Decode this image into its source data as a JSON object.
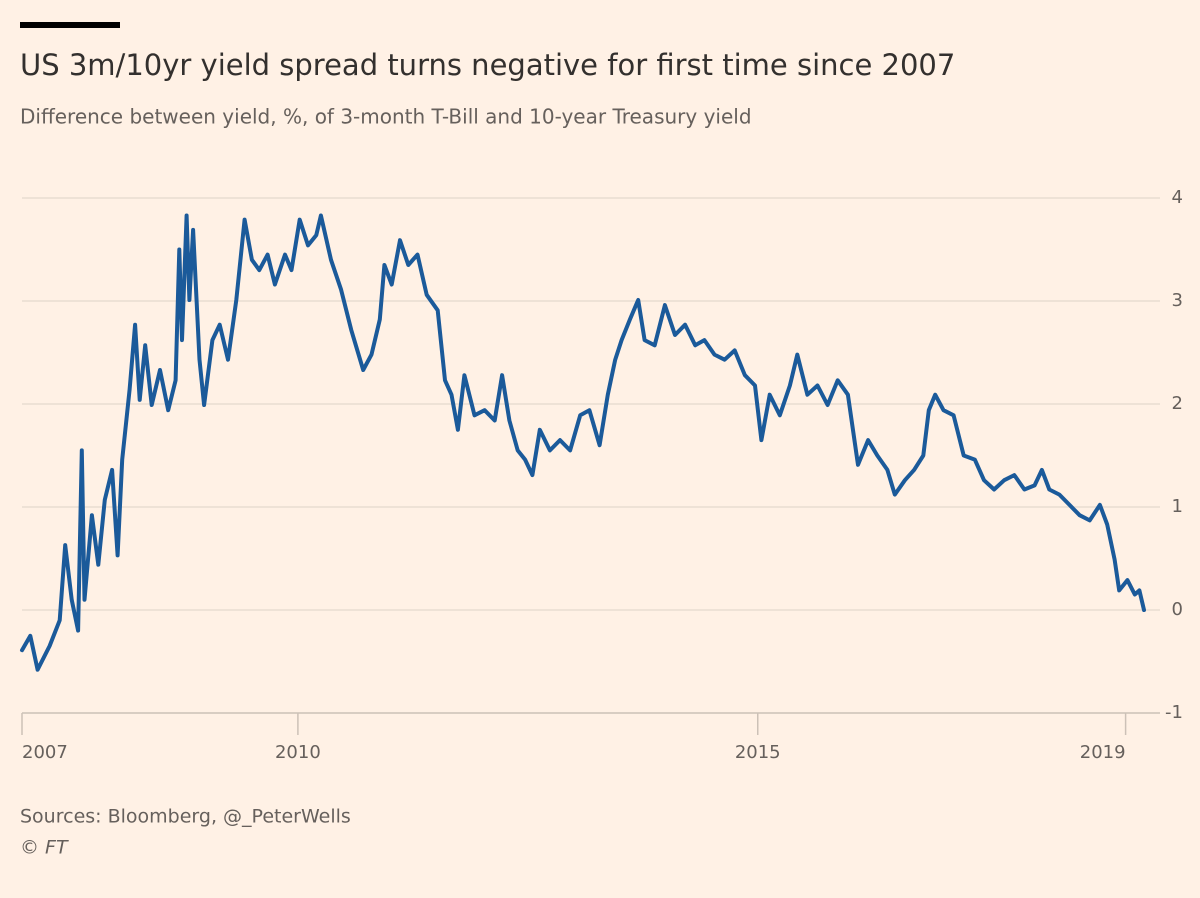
{
  "chart_data": {
    "type": "line",
    "title": "US 3m/10yr yield spread turns negative for first time since 2007",
    "subtitle": "Difference between yield, %, of 3-month T-Bill and 10-year Treasury yield",
    "source": "Sources: Bloomberg, @_PeterWells",
    "credit": "© FT",
    "color": "#1b5a9a",
    "grid": true,
    "xlim": [
      2007,
      2019.2
    ],
    "xticks": [
      2007,
      2010,
      2015,
      2019
    ],
    "ylim": [
      -1,
      4
    ],
    "yticks": [
      -1,
      0,
      1,
      2,
      3,
      4
    ],
    "x": [
      2007.0,
      2007.09,
      2007.17,
      2007.3,
      2007.41,
      2007.47,
      2007.54,
      2007.61,
      2007.65,
      2007.68,
      2007.76,
      2007.83,
      2007.9,
      2007.98,
      2008.04,
      2008.09,
      2008.17,
      2008.23,
      2008.28,
      2008.34,
      2008.41,
      2008.5,
      2008.59,
      2008.67,
      2008.71,
      2008.74,
      2008.79,
      2008.82,
      2008.86,
      2008.93,
      2008.98,
      2009.07,
      2009.15,
      2009.24,
      2009.33,
      2009.42,
      2009.5,
      2009.58,
      2009.67,
      2009.75,
      2009.86,
      2009.93,
      2010.02,
      2010.11,
      2010.2,
      2010.25,
      2010.36,
      2010.47,
      2010.58,
      2010.71,
      2010.8,
      2010.89,
      2010.94,
      2011.02,
      2011.11,
      2011.2,
      2011.3,
      2011.4,
      2011.52,
      2011.6,
      2011.67,
      2011.74,
      2011.81,
      2011.92,
      2012.03,
      2012.14,
      2012.22,
      2012.3,
      2012.39,
      2012.47,
      2012.55,
      2012.63,
      2012.74,
      2012.85,
      2012.96,
      2013.07,
      2013.17,
      2013.28,
      2013.37,
      2013.45,
      2013.52,
      2013.61,
      2013.7,
      2013.77,
      2013.88,
      2013.99,
      2014.1,
      2014.21,
      2014.32,
      2014.42,
      2014.53,
      2014.64,
      2014.75,
      2014.86,
      2014.97,
      2015.04,
      2015.13,
      2015.24,
      2015.35,
      2015.43,
      2015.54,
      2015.65,
      2015.76,
      2015.87,
      2015.98,
      2016.09,
      2016.2,
      2016.3,
      2016.41,
      2016.49,
      2016.6,
      2016.7,
      2016.8,
      2016.86,
      2016.93,
      2017.02,
      2017.13,
      2017.24,
      2017.36,
      2017.46,
      2017.57,
      2017.68,
      2017.79,
      2017.9,
      2018.01,
      2018.09,
      2018.17,
      2018.28,
      2018.39,
      2018.5,
      2018.61,
      2018.72,
      2018.8,
      2018.88,
      2018.93,
      2019.02,
      2019.1,
      2019.15,
      2019.2
    ],
    "values": [
      -0.39,
      -0.25,
      -0.58,
      -0.35,
      -0.1,
      0.63,
      0.1,
      -0.2,
      1.55,
      0.1,
      0.92,
      0.44,
      1.07,
      1.36,
      0.53,
      1.46,
      2.14,
      2.77,
      2.04,
      2.57,
      1.99,
      2.33,
      1.94,
      2.23,
      3.5,
      2.62,
      3.83,
      3.01,
      3.69,
      2.43,
      1.99,
      2.62,
      2.77,
      2.43,
      3.01,
      3.79,
      3.4,
      3.3,
      3.45,
      3.16,
      3.45,
      3.3,
      3.79,
      3.54,
      3.64,
      3.83,
      3.4,
      3.11,
      2.72,
      2.33,
      2.48,
      2.82,
      3.35,
      3.16,
      3.59,
      3.35,
      3.45,
      3.06,
      2.91,
      2.23,
      2.09,
      1.75,
      2.28,
      1.89,
      1.94,
      1.84,
      2.28,
      1.84,
      1.55,
      1.46,
      1.31,
      1.75,
      1.55,
      1.65,
      1.55,
      1.89,
      1.94,
      1.6,
      2.09,
      2.43,
      2.62,
      2.82,
      3.01,
      2.62,
      2.57,
      2.96,
      2.67,
      2.77,
      2.57,
      2.62,
      2.48,
      2.43,
      2.52,
      2.28,
      2.18,
      1.65,
      2.09,
      1.89,
      2.18,
      2.48,
      2.09,
      2.18,
      1.99,
      2.23,
      2.09,
      1.41,
      1.65,
      1.5,
      1.36,
      1.12,
      1.26,
      1.36,
      1.5,
      1.94,
      2.09,
      1.94,
      1.89,
      1.5,
      1.46,
      1.26,
      1.17,
      1.26,
      1.31,
      1.17,
      1.21,
      1.36,
      1.17,
      1.12,
      1.02,
      0.92,
      0.87,
      1.02,
      0.83,
      0.49,
      0.19,
      0.29,
      0.15,
      0.19,
      0.0
    ]
  }
}
